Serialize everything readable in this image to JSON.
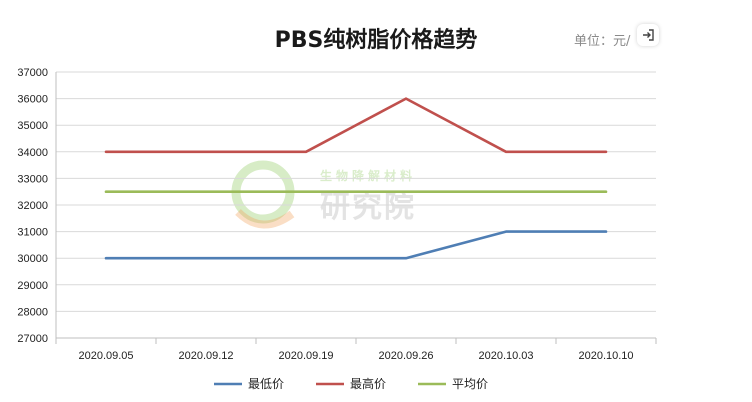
{
  "header": {
    "title": "PBS纯树脂价格趋势",
    "unit": "单位：元/"
  },
  "watermark": {
    "small": "生物降解材料",
    "big": "研究院"
  },
  "chart_data": {
    "type": "line",
    "categories": [
      "2020.09.05",
      "2020.09.12",
      "2020.09.19",
      "2020.09.26",
      "2020.10.03",
      "2020.10.10"
    ],
    "series": [
      {
        "name": "最低价",
        "color": "#4f7eb4",
        "values": [
          30000,
          30000,
          30000,
          30000,
          31000,
          31000
        ]
      },
      {
        "name": "最高价",
        "color": "#c0504d",
        "values": [
          34000,
          34000,
          34000,
          36000,
          34000,
          34000
        ]
      },
      {
        "name": "平均价",
        "color": "#9bbb59",
        "values": [
          32500,
          32500,
          32500,
          32500,
          32500,
          32500
        ]
      }
    ],
    "ylim": [
      27000,
      37000
    ],
    "yticks": [
      27000,
      28000,
      29000,
      30000,
      31000,
      32000,
      33000,
      34000,
      35000,
      36000,
      37000
    ],
    "grid": true,
    "legend_position": "bottom"
  }
}
